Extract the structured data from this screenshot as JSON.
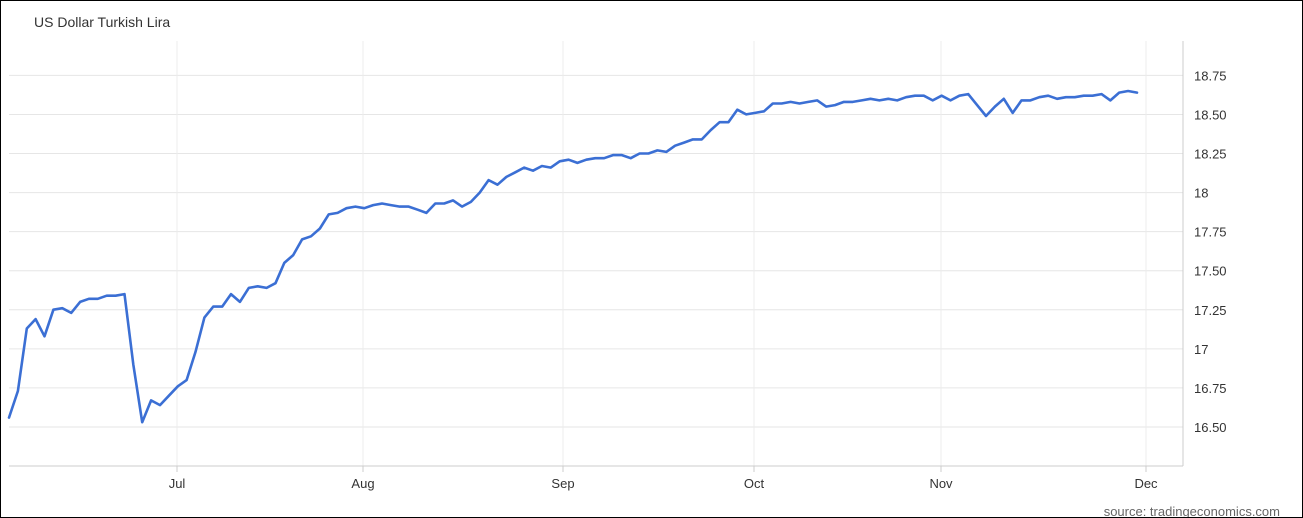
{
  "chart_data": {
    "type": "line",
    "title": "US Dollar Turkish Lira",
    "source": "source: tradingeconomics.com",
    "xlabel": "",
    "ylabel": "",
    "x_ticks": [
      "Jul",
      "Aug",
      "Sep",
      "Oct",
      "Nov",
      "Dec"
    ],
    "y_ticks": [
      16.5,
      16.75,
      17,
      17.25,
      17.5,
      17.75,
      18,
      18.25,
      18.5,
      18.75
    ],
    "y_tick_labels": [
      "16.50",
      "16.75",
      "17",
      "17.25",
      "17.50",
      "17.75",
      "18",
      "18.25",
      "18.50",
      "18.75"
    ],
    "ylim": [
      16.25,
      18.97
    ],
    "grid": true,
    "line_color": "#3b6fd4",
    "series": [
      {
        "values": [
          16.56,
          16.73,
          17.13,
          17.19,
          17.08,
          17.25,
          17.26,
          17.23,
          17.3,
          17.32,
          17.32,
          17.34,
          17.34,
          17.35,
          16.9,
          16.53,
          16.67,
          16.64,
          16.7,
          16.76,
          16.8,
          16.98,
          17.2,
          17.27,
          17.27,
          17.35,
          17.3,
          17.39,
          17.4,
          17.39,
          17.42,
          17.55,
          17.6,
          17.7,
          17.72,
          17.77,
          17.86,
          17.87,
          17.9,
          17.91,
          17.9,
          17.92,
          17.93,
          17.92,
          17.91,
          17.91,
          17.89,
          17.87,
          17.93,
          17.93,
          17.95,
          17.91,
          17.94,
          18.0,
          18.08,
          18.05,
          18.1,
          18.13,
          18.16,
          18.14,
          18.17,
          18.16,
          18.2,
          18.21,
          18.19,
          18.21,
          18.22,
          18.22,
          18.24,
          18.24,
          18.22,
          18.25,
          18.25,
          18.27,
          18.26,
          18.3,
          18.32,
          18.34,
          18.34,
          18.4,
          18.45,
          18.45,
          18.53,
          18.5,
          18.51,
          18.52,
          18.57,
          18.57,
          18.58,
          18.57,
          18.58,
          18.59,
          18.55,
          18.56,
          18.58,
          18.58,
          18.59,
          18.6,
          18.59,
          18.6,
          18.59,
          18.61,
          18.62,
          18.62,
          18.59,
          18.62,
          18.59,
          18.62,
          18.63,
          18.56,
          18.49,
          18.55,
          18.6,
          18.51,
          18.59,
          18.59,
          18.61,
          18.62,
          18.6,
          18.61,
          18.61,
          18.62,
          18.62,
          18.63,
          18.59,
          18.64,
          18.65,
          18.64
        ]
      }
    ]
  }
}
